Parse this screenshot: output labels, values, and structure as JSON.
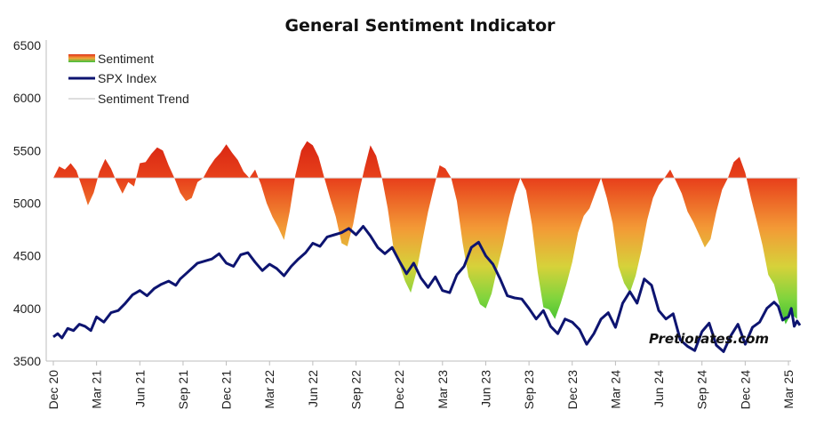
{
  "chart_data": {
    "type": "line",
    "title": "General Sentiment Indicator",
    "watermark": "Pretiorates.com",
    "xlabel": "",
    "ylabel": "",
    "ylim": [
      3500,
      6500
    ],
    "y_ticks": [
      "3500",
      "4000",
      "4500",
      "5000",
      "5500",
      "6000",
      "6500"
    ],
    "x_ticks": [
      "Dec 20",
      "Mar 21",
      "Jun 21",
      "Sep 21",
      "Dec 21",
      "Mar 22",
      "Jun 22",
      "Sep 22",
      "Dec 22",
      "Mar 23",
      "Jun 23",
      "Sep 23",
      "Dec 23",
      "Mar 24",
      "Jun 24",
      "Sep 24",
      "Dec 24",
      "Mar 25"
    ],
    "grid": false,
    "legend_position": "top-left",
    "legend": [
      {
        "label": "Sentiment",
        "kind": "gradient"
      },
      {
        "label": "SPX Index",
        "kind": "line",
        "color": "#0d1470"
      },
      {
        "label": "Sentiment Trend",
        "kind": "line",
        "color": "#c8c8c8"
      }
    ],
    "colors": {
      "spx": "#0d1470",
      "sentiment_high": "#e02a16",
      "sentiment_mid": "#f2a43a",
      "sentiment_low": "#2ec22e",
      "trend": "#c8c8c8"
    },
    "series": [
      {
        "name": "SPX Index",
        "x": [
          0,
          0.3,
          0.6,
          1.0,
          1.4,
          1.8,
          2.2,
          2.6,
          3.0,
          3.5,
          4.0,
          4.5,
          5.0,
          5.5,
          6.0,
          6.5,
          7.0,
          7.5,
          8.0,
          8.5,
          8.8,
          9.2,
          9.6,
          10.0,
          10.5,
          11.0,
          11.5,
          12.0,
          12.5,
          13.0,
          13.5,
          14.0,
          14.5,
          15.0,
          15.5,
          16.0,
          16.5,
          17.0,
          17.5,
          18.0,
          18.5,
          19.0,
          19.5,
          20.0,
          20.5,
          21.0,
          21.5,
          22.0,
          22.5,
          23.0,
          23.5,
          24.0,
          24.5,
          25.0,
          25.5,
          26.0,
          26.5,
          27.0,
          27.5,
          28.0,
          28.5,
          29.0,
          29.5,
          30.0,
          30.5,
          31.0,
          31.5,
          32.0,
          32.5,
          33.0,
          33.5,
          34.0,
          34.5,
          35.0,
          35.5,
          36.0,
          36.5,
          37.0,
          37.5,
          38.0,
          38.5,
          39.0,
          39.5,
          40.0,
          40.5,
          41.0,
          41.5,
          42.0,
          42.5,
          43.0,
          43.5,
          44.0,
          44.5,
          45.0,
          45.5,
          46.0,
          46.5,
          47.0,
          47.5,
          48.0,
          48.5,
          49.0,
          49.5,
          50.0,
          50.3,
          50.6,
          50.8,
          51.0,
          51.2,
          51.4,
          51.6,
          51.8
        ],
        "values": [
          3730,
          3760,
          3720,
          3810,
          3790,
          3850,
          3830,
          3790,
          3920,
          3870,
          3960,
          3980,
          4050,
          4130,
          4170,
          4120,
          4190,
          4230,
          4260,
          4220,
          4280,
          4330,
          4380,
          4430,
          4450,
          4470,
          4520,
          4430,
          4400,
          4510,
          4530,
          4440,
          4360,
          4420,
          4380,
          4310,
          4400,
          4470,
          4530,
          4620,
          4590,
          4680,
          4700,
          4720,
          4760,
          4700,
          4780,
          4690,
          4580,
          4520,
          4580,
          4450,
          4330,
          4430,
          4290,
          4200,
          4300,
          4170,
          4150,
          4320,
          4400,
          4580,
          4630,
          4500,
          4420,
          4280,
          4120,
          4100,
          4090,
          4000,
          3900,
          3980,
          3830,
          3760,
          3900,
          3870,
          3800,
          3660,
          3760,
          3900,
          3960,
          3820,
          4050,
          4160,
          4050,
          4280,
          4220,
          3980,
          3900,
          3950,
          3700,
          3640,
          3600,
          3780,
          3860,
          3650,
          3590,
          3740,
          3850,
          3660,
          3820,
          3870,
          4000,
          4060,
          4020,
          3890,
          3910,
          3920,
          4000,
          3830,
          3880,
          3840
        ]
      },
      {
        "name": "Sentiment",
        "x": [
          0,
          0.4,
          0.8,
          1.2,
          1.6,
          2.0,
          2.4,
          2.8,
          3.2,
          3.6,
          4.0,
          4.4,
          4.8,
          5.2,
          5.6,
          6.0,
          6.4,
          6.8,
          7.2,
          7.6,
          8.0,
          8.4,
          8.8,
          9.2,
          9.6,
          10.0,
          10.4,
          10.8,
          11.2,
          11.6,
          12.0,
          12.4,
          12.8,
          13.2,
          13.6,
          14.0,
          14.4,
          14.8,
          15.2,
          15.6,
          16.0,
          16.4,
          16.8,
          17.2,
          17.6,
          18.0,
          18.4,
          18.8,
          19.2,
          19.6,
          20.0,
          20.4,
          20.8,
          21.2,
          21.6,
          22.0,
          22.4,
          22.8,
          23.2,
          23.6,
          24.0,
          24.4,
          24.8,
          25.2,
          25.6,
          26.0,
          26.4,
          26.8,
          27.2,
          27.6,
          28.0,
          28.4,
          28.8,
          29.2,
          29.6,
          30.0,
          30.4,
          30.8,
          31.2,
          31.6,
          32.0,
          32.4,
          32.8,
          33.2,
          33.6,
          34.0,
          34.4,
          34.8,
          35.2,
          35.6,
          36.0,
          36.4,
          36.8,
          37.2,
          37.6,
          38.0,
          38.4,
          38.8,
          39.2,
          39.6,
          40.0,
          40.4,
          40.8,
          41.2,
          41.6,
          42.0,
          42.4,
          42.8,
          43.2,
          43.6,
          44.0,
          44.4,
          44.8,
          45.2,
          45.6,
          46.0,
          46.4,
          46.8,
          47.2,
          47.6,
          48.0,
          48.4,
          48.8,
          49.2,
          49.6,
          50.0,
          50.4,
          50.8,
          51.2,
          51.6
        ],
        "values": [
          5240,
          5350,
          5320,
          5380,
          5310,
          5150,
          4980,
          5100,
          5300,
          5420,
          5330,
          5200,
          5090,
          5200,
          5160,
          5380,
          5390,
          5470,
          5530,
          5500,
          5360,
          5240,
          5100,
          5020,
          5050,
          5200,
          5240,
          5340,
          5420,
          5480,
          5560,
          5480,
          5410,
          5300,
          5240,
          5320,
          5180,
          5000,
          4870,
          4770,
          4650,
          4920,
          5270,
          5500,
          5590,
          5550,
          5440,
          5240,
          5050,
          4870,
          4620,
          4590,
          4800,
          5100,
          5340,
          5550,
          5450,
          5240,
          4950,
          4570,
          4420,
          4260,
          4150,
          4350,
          4640,
          4920,
          5150,
          5360,
          5330,
          5240,
          5020,
          4620,
          4300,
          4180,
          4040,
          4000,
          4140,
          4380,
          4600,
          4860,
          5080,
          5240,
          5120,
          4800,
          4350,
          4010,
          3990,
          3900,
          4050,
          4230,
          4440,
          4720,
          4880,
          4950,
          5100,
          5240,
          5050,
          4810,
          4400,
          4240,
          4150,
          4310,
          4550,
          4840,
          5050,
          5170,
          5240,
          5320,
          5210,
          5090,
          4920,
          4820,
          4700,
          4580,
          4660,
          4920,
          5130,
          5240,
          5390,
          5440,
          5290,
          5050,
          4830,
          4600,
          4320,
          4230,
          4020,
          3850,
          3950,
          3900
        ]
      },
      {
        "name": "Sentiment Trend",
        "x": [
          0,
          51.8
        ],
        "values": [
          5240,
          5240
        ]
      }
    ]
  }
}
